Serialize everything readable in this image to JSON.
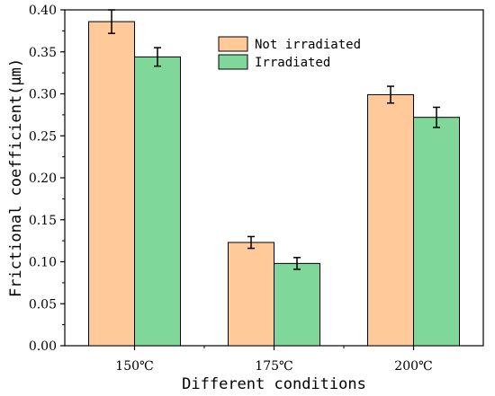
{
  "chart_data": {
    "type": "bar",
    "title": "",
    "xlabel": "Different conditions",
    "ylabel": "Frictional coefficient(μm)",
    "categories": [
      "150℃",
      "175℃",
      "200℃"
    ],
    "ylim": [
      0,
      0.4
    ],
    "yticks": [
      "0.00",
      "0.05",
      "0.10",
      "0.15",
      "0.20",
      "0.25",
      "0.30",
      "0.35",
      "0.40"
    ],
    "grid": false,
    "legend_position": "top-center",
    "series": [
      {
        "name": "Not irradiated",
        "color": "#FFC99A",
        "values": [
          0.386,
          0.123,
          0.299
        ],
        "errors": [
          0.014,
          0.007,
          0.01
        ]
      },
      {
        "name": "Irradiated",
        "color": "#7FD89A",
        "values": [
          0.344,
          0.098,
          0.272
        ],
        "errors": [
          0.011,
          0.007,
          0.012
        ]
      }
    ]
  }
}
